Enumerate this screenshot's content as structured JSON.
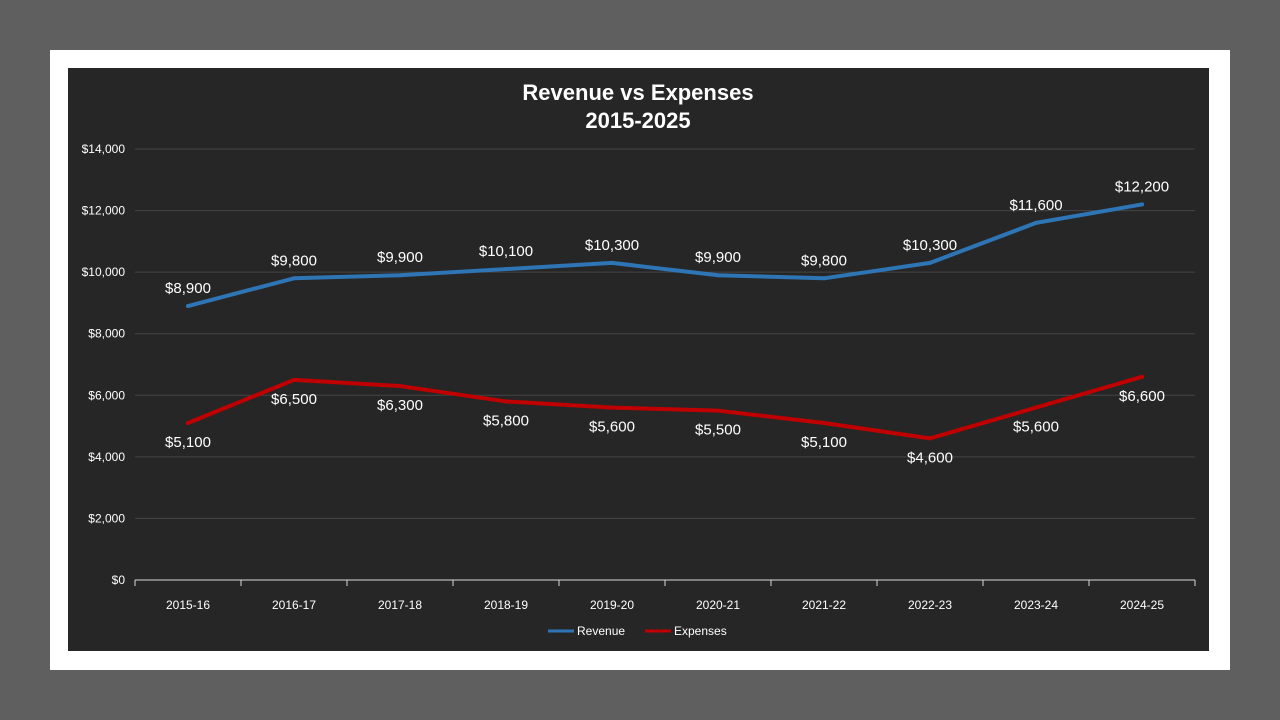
{
  "chart_data": {
    "type": "line",
    "title_line1": "Revenue vs Expenses",
    "title_line2": "2015-2025",
    "xlabel": "",
    "ylabel": "",
    "ylim": [
      0,
      14000
    ],
    "yticks": [
      0,
      2000,
      4000,
      6000,
      8000,
      10000,
      12000,
      14000
    ],
    "ytick_labels": [
      "$0",
      "$2,000",
      "$4,000",
      "$6,000",
      "$8,000",
      "$10,000",
      "$12,000",
      "$14,000"
    ],
    "grid": true,
    "legend_position": "bottom",
    "categories": [
      "2015-16",
      "2016-17",
      "2017-18",
      "2018-19",
      "2019-20",
      "2020-21",
      "2021-22",
      "2022-23",
      "2023-24",
      "2024-25"
    ],
    "series": [
      {
        "name": "Revenue",
        "color": "#2e75b6",
        "values": [
          8900,
          9800,
          9900,
          10100,
          10300,
          9900,
          9800,
          10300,
          11600,
          12200
        ],
        "labels": [
          "$8,900",
          "$9,800",
          "$9,900",
          "$10,100",
          "$10,300",
          "$9,900",
          "$9,800",
          "$10,300",
          "$11,600",
          "$12,200"
        ],
        "label_position": "above"
      },
      {
        "name": "Expenses",
        "color": "#c00000",
        "values": [
          5100,
          6500,
          6300,
          5800,
          5600,
          5500,
          5100,
          4600,
          5600,
          6600
        ],
        "labels": [
          "$5,100",
          "$6,500",
          "$6,300",
          "$5,800",
          "$5,600",
          "$5,500",
          "$5,100",
          "$4,600",
          "$5,600",
          "$6,600"
        ],
        "label_position": "below"
      }
    ]
  }
}
